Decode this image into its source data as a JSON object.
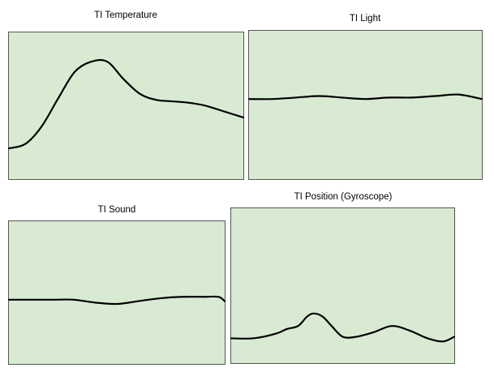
{
  "colors": {
    "panel_fill": "#d9ead3",
    "panel_border": "#555555",
    "line": "#000000"
  },
  "panels": [
    {
      "title": "TI Temperature",
      "points": [
        [
          0.0,
          0.79
        ],
        [
          0.07,
          0.76
        ],
        [
          0.14,
          0.64
        ],
        [
          0.21,
          0.45
        ],
        [
          0.28,
          0.27
        ],
        [
          0.35,
          0.2
        ],
        [
          0.42,
          0.2
        ],
        [
          0.49,
          0.32
        ],
        [
          0.56,
          0.42
        ],
        [
          0.63,
          0.46
        ],
        [
          0.7,
          0.47
        ],
        [
          0.77,
          0.48
        ],
        [
          0.84,
          0.5
        ],
        [
          0.92,
          0.54
        ],
        [
          1.0,
          0.58
        ]
      ]
    },
    {
      "title": "TI Light",
      "points": [
        [
          0.0,
          0.46
        ],
        [
          0.1,
          0.46
        ],
        [
          0.2,
          0.45
        ],
        [
          0.3,
          0.44
        ],
        [
          0.4,
          0.45
        ],
        [
          0.5,
          0.46
        ],
        [
          0.6,
          0.45
        ],
        [
          0.7,
          0.45
        ],
        [
          0.8,
          0.44
        ],
        [
          0.9,
          0.43
        ],
        [
          1.0,
          0.46
        ]
      ]
    },
    {
      "title": "TI Sound",
      "points": [
        [
          0.0,
          0.55
        ],
        [
          0.1,
          0.55
        ],
        [
          0.2,
          0.55
        ],
        [
          0.3,
          0.55
        ],
        [
          0.4,
          0.57
        ],
        [
          0.5,
          0.58
        ],
        [
          0.6,
          0.56
        ],
        [
          0.7,
          0.54
        ],
        [
          0.8,
          0.53
        ],
        [
          0.9,
          0.53
        ],
        [
          0.97,
          0.53
        ],
        [
          1.0,
          0.56
        ]
      ]
    },
    {
      "title": "TI Position (Gyroscope)",
      "points": [
        [
          0.0,
          0.84
        ],
        [
          0.1,
          0.84
        ],
        [
          0.2,
          0.81
        ],
        [
          0.25,
          0.78
        ],
        [
          0.3,
          0.76
        ],
        [
          0.34,
          0.7
        ],
        [
          0.37,
          0.68
        ],
        [
          0.41,
          0.7
        ],
        [
          0.45,
          0.76
        ],
        [
          0.5,
          0.83
        ],
        [
          0.56,
          0.83
        ],
        [
          0.64,
          0.8
        ],
        [
          0.72,
          0.76
        ],
        [
          0.8,
          0.79
        ],
        [
          0.88,
          0.84
        ],
        [
          0.95,
          0.86
        ],
        [
          1.0,
          0.83
        ]
      ]
    }
  ]
}
